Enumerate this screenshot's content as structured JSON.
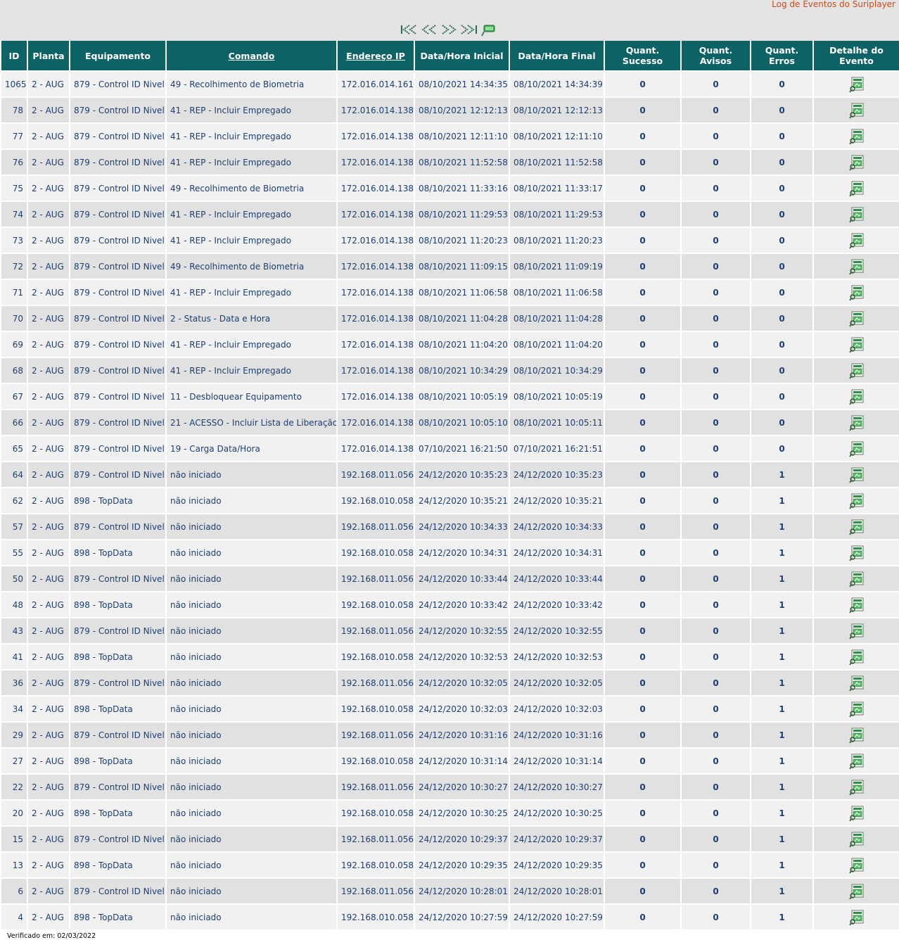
{
  "header": {
    "log_link": "Log de Eventos do Suriplayer"
  },
  "pager": {
    "first_icon": "first-page-icon",
    "prev_icon": "previous-page-icon",
    "next_icon": "next-page-icon",
    "last_icon": "last-page-icon",
    "refresh_icon": "refresh-icon"
  },
  "table": {
    "columns": [
      "ID",
      "Planta",
      "Equipamento",
      "Comando",
      "Endereço IP",
      "Data/Hora Inicial",
      "Data/Hora Final",
      "Quant. Sucesso",
      "Quant. Avisos",
      "Quant. Erros",
      "Detalhe do Evento"
    ],
    "detail_icon": "event-detail-icon",
    "colors": {
      "header": "#0d6266",
      "success": "#1a63d8",
      "warning": "#f1b52e",
      "error": "#e00000"
    },
    "rows": [
      {
        "id": "1065",
        "planta": "2 - AUG",
        "equip": "879 - Control ID Nivel",
        "comando": "49 - Recolhimento de Biometria",
        "ip": "172.016.014.161",
        "ini": "08/10/2021 14:34:35",
        "fim": "08/10/2021 14:34:39",
        "suc": "0",
        "avi": "0",
        "err": "0"
      },
      {
        "id": "78",
        "planta": "2 - AUG",
        "equip": "879 - Control ID Nivel",
        "comando": "41 - REP - Incluir Empregado",
        "ip": "172.016.014.138",
        "ini": "08/10/2021 12:12:13",
        "fim": "08/10/2021 12:12:13",
        "suc": "0",
        "avi": "0",
        "err": "0"
      },
      {
        "id": "77",
        "planta": "2 - AUG",
        "equip": "879 - Control ID Nivel",
        "comando": "41 - REP - Incluir Empregado",
        "ip": "172.016.014.138",
        "ini": "08/10/2021 12:11:10",
        "fim": "08/10/2021 12:11:10",
        "suc": "0",
        "avi": "0",
        "err": "0"
      },
      {
        "id": "76",
        "planta": "2 - AUG",
        "equip": "879 - Control ID Nivel",
        "comando": "41 - REP - Incluir Empregado",
        "ip": "172.016.014.138",
        "ini": "08/10/2021 11:52:58",
        "fim": "08/10/2021 11:52:58",
        "suc": "0",
        "avi": "0",
        "err": "0"
      },
      {
        "id": "75",
        "planta": "2 - AUG",
        "equip": "879 - Control ID Nivel",
        "comando": "49 - Recolhimento de Biometria",
        "ip": "172.016.014.138",
        "ini": "08/10/2021 11:33:16",
        "fim": "08/10/2021 11:33:17",
        "suc": "0",
        "avi": "0",
        "err": "0"
      },
      {
        "id": "74",
        "planta": "2 - AUG",
        "equip": "879 - Control ID Nivel",
        "comando": "41 - REP - Incluir Empregado",
        "ip": "172.016.014.138",
        "ini": "08/10/2021 11:29:53",
        "fim": "08/10/2021 11:29:53",
        "suc": "0",
        "avi": "0",
        "err": "0"
      },
      {
        "id": "73",
        "planta": "2 - AUG",
        "equip": "879 - Control ID Nivel",
        "comando": "41 - REP - Incluir Empregado",
        "ip": "172.016.014.138",
        "ini": "08/10/2021 11:20:23",
        "fim": "08/10/2021 11:20:23",
        "suc": "0",
        "avi": "0",
        "err": "0"
      },
      {
        "id": "72",
        "planta": "2 - AUG",
        "equip": "879 - Control ID Nivel",
        "comando": "49 - Recolhimento de Biometria",
        "ip": "172.016.014.138",
        "ini": "08/10/2021 11:09:15",
        "fim": "08/10/2021 11:09:19",
        "suc": "0",
        "avi": "0",
        "err": "0"
      },
      {
        "id": "71",
        "planta": "2 - AUG",
        "equip": "879 - Control ID Nivel",
        "comando": "41 - REP - Incluir Empregado",
        "ip": "172.016.014.138",
        "ini": "08/10/2021 11:06:58",
        "fim": "08/10/2021 11:06:58",
        "suc": "0",
        "avi": "0",
        "err": "0"
      },
      {
        "id": "70",
        "planta": "2 - AUG",
        "equip": "879 - Control ID Nivel",
        "comando": "2 - Status - Data e Hora",
        "ip": "172.016.014.138",
        "ini": "08/10/2021 11:04:28",
        "fim": "08/10/2021 11:04:28",
        "suc": "0",
        "avi": "0",
        "err": "0"
      },
      {
        "id": "69",
        "planta": "2 - AUG",
        "equip": "879 - Control ID Nivel",
        "comando": "41 - REP - Incluir Empregado",
        "ip": "172.016.014.138",
        "ini": "08/10/2021 11:04:20",
        "fim": "08/10/2021 11:04:20",
        "suc": "0",
        "avi": "0",
        "err": "0"
      },
      {
        "id": "68",
        "planta": "2 - AUG",
        "equip": "879 - Control ID Nivel",
        "comando": "41 - REP - Incluir Empregado",
        "ip": "172.016.014.138",
        "ini": "08/10/2021 10:34:29",
        "fim": "08/10/2021 10:34:29",
        "suc": "0",
        "avi": "0",
        "err": "0"
      },
      {
        "id": "67",
        "planta": "2 - AUG",
        "equip": "879 - Control ID Nivel",
        "comando": "11 - Desbloquear Equipamento",
        "ip": "172.016.014.138",
        "ini": "08/10/2021 10:05:19",
        "fim": "08/10/2021 10:05:19",
        "suc": "0",
        "avi": "0",
        "err": "0"
      },
      {
        "id": "66",
        "planta": "2 - AUG",
        "equip": "879 - Control ID Nivel",
        "comando": "21 - ACESSO - Incluir Lista de Liberação",
        "ip": "172.016.014.138",
        "ini": "08/10/2021 10:05:10",
        "fim": "08/10/2021 10:05:11",
        "suc": "0",
        "avi": "0",
        "err": "0"
      },
      {
        "id": "65",
        "planta": "2 - AUG",
        "equip": "879 - Control ID Nivel",
        "comando": "19 - Carga Data/Hora",
        "ip": "172.016.014.138",
        "ini": "07/10/2021 16:21:50",
        "fim": "07/10/2021 16:21:51",
        "suc": "0",
        "avi": "0",
        "err": "0"
      },
      {
        "id": "64",
        "planta": "2 - AUG",
        "equip": "879 - Control ID Nivel",
        "comando": "não iniciado",
        "ip": "192.168.011.056",
        "ini": "24/12/2020 10:35:23",
        "fim": "24/12/2020 10:35:23",
        "suc": "0",
        "avi": "0",
        "err": "1"
      },
      {
        "id": "62",
        "planta": "2 - AUG",
        "equip": "898 - TopData",
        "comando": "não iniciado",
        "ip": "192.168.010.058",
        "ini": "24/12/2020 10:35:21",
        "fim": "24/12/2020 10:35:21",
        "suc": "0",
        "avi": "0",
        "err": "1"
      },
      {
        "id": "57",
        "planta": "2 - AUG",
        "equip": "879 - Control ID Nivel",
        "comando": "não iniciado",
        "ip": "192.168.011.056",
        "ini": "24/12/2020 10:34:33",
        "fim": "24/12/2020 10:34:33",
        "suc": "0",
        "avi": "0",
        "err": "1"
      },
      {
        "id": "55",
        "planta": "2 - AUG",
        "equip": "898 - TopData",
        "comando": "não iniciado",
        "ip": "192.168.010.058",
        "ini": "24/12/2020 10:34:31",
        "fim": "24/12/2020 10:34:31",
        "suc": "0",
        "avi": "0",
        "err": "1"
      },
      {
        "id": "50",
        "planta": "2 - AUG",
        "equip": "879 - Control ID Nivel",
        "comando": "não iniciado",
        "ip": "192.168.011.056",
        "ini": "24/12/2020 10:33:44",
        "fim": "24/12/2020 10:33:44",
        "suc": "0",
        "avi": "0",
        "err": "1"
      },
      {
        "id": "48",
        "planta": "2 - AUG",
        "equip": "898 - TopData",
        "comando": "não iniciado",
        "ip": "192.168.010.058",
        "ini": "24/12/2020 10:33:42",
        "fim": "24/12/2020 10:33:42",
        "suc": "0",
        "avi": "0",
        "err": "1"
      },
      {
        "id": "43",
        "planta": "2 - AUG",
        "equip": "879 - Control ID Nivel",
        "comando": "não iniciado",
        "ip": "192.168.011.056",
        "ini": "24/12/2020 10:32:55",
        "fim": "24/12/2020 10:32:55",
        "suc": "0",
        "avi": "0",
        "err": "1"
      },
      {
        "id": "41",
        "planta": "2 - AUG",
        "equip": "898 - TopData",
        "comando": "não iniciado",
        "ip": "192.168.010.058",
        "ini": "24/12/2020 10:32:53",
        "fim": "24/12/2020 10:32:53",
        "suc": "0",
        "avi": "0",
        "err": "1"
      },
      {
        "id": "36",
        "planta": "2 - AUG",
        "equip": "879 - Control ID Nivel",
        "comando": "não iniciado",
        "ip": "192.168.011.056",
        "ini": "24/12/2020 10:32:05",
        "fim": "24/12/2020 10:32:05",
        "suc": "0",
        "avi": "0",
        "err": "1"
      },
      {
        "id": "34",
        "planta": "2 - AUG",
        "equip": "898 - TopData",
        "comando": "não iniciado",
        "ip": "192.168.010.058",
        "ini": "24/12/2020 10:32:03",
        "fim": "24/12/2020 10:32:03",
        "suc": "0",
        "avi": "0",
        "err": "1"
      },
      {
        "id": "29",
        "planta": "2 - AUG",
        "equip": "879 - Control ID Nivel",
        "comando": "não iniciado",
        "ip": "192.168.011.056",
        "ini": "24/12/2020 10:31:16",
        "fim": "24/12/2020 10:31:16",
        "suc": "0",
        "avi": "0",
        "err": "1"
      },
      {
        "id": "27",
        "planta": "2 - AUG",
        "equip": "898 - TopData",
        "comando": "não iniciado",
        "ip": "192.168.010.058",
        "ini": "24/12/2020 10:31:14",
        "fim": "24/12/2020 10:31:14",
        "suc": "0",
        "avi": "0",
        "err": "1"
      },
      {
        "id": "22",
        "planta": "2 - AUG",
        "equip": "879 - Control ID Nivel",
        "comando": "não iniciado",
        "ip": "192.168.011.056",
        "ini": "24/12/2020 10:30:27",
        "fim": "24/12/2020 10:30:27",
        "suc": "0",
        "avi": "0",
        "err": "1"
      },
      {
        "id": "20",
        "planta": "2 - AUG",
        "equip": "898 - TopData",
        "comando": "não iniciado",
        "ip": "192.168.010.058",
        "ini": "24/12/2020 10:30:25",
        "fim": "24/12/2020 10:30:25",
        "suc": "0",
        "avi": "0",
        "err": "1"
      },
      {
        "id": "15",
        "planta": "2 - AUG",
        "equip": "879 - Control ID Nivel",
        "comando": "não iniciado",
        "ip": "192.168.011.056",
        "ini": "24/12/2020 10:29:37",
        "fim": "24/12/2020 10:29:37",
        "suc": "0",
        "avi": "0",
        "err": "1"
      },
      {
        "id": "13",
        "planta": "2 - AUG",
        "equip": "898 - TopData",
        "comando": "não iniciado",
        "ip": "192.168.010.058",
        "ini": "24/12/2020 10:29:35",
        "fim": "24/12/2020 10:29:35",
        "suc": "0",
        "avi": "0",
        "err": "1"
      },
      {
        "id": "6",
        "planta": "2 - AUG",
        "equip": "879 - Control ID Nivel",
        "comando": "não iniciado",
        "ip": "192.168.011.056",
        "ini": "24/12/2020 10:28:01",
        "fim": "24/12/2020 10:28:01",
        "suc": "0",
        "avi": "0",
        "err": "1"
      },
      {
        "id": "4",
        "planta": "2 - AUG",
        "equip": "898 - TopData",
        "comando": "não iniciado",
        "ip": "192.168.010.058",
        "ini": "24/12/2020 10:27:59",
        "fim": "24/12/2020 10:27:59",
        "suc": "0",
        "avi": "0",
        "err": "1"
      }
    ]
  },
  "footer": {
    "verified": "Verificado em: 02/03/2022"
  }
}
